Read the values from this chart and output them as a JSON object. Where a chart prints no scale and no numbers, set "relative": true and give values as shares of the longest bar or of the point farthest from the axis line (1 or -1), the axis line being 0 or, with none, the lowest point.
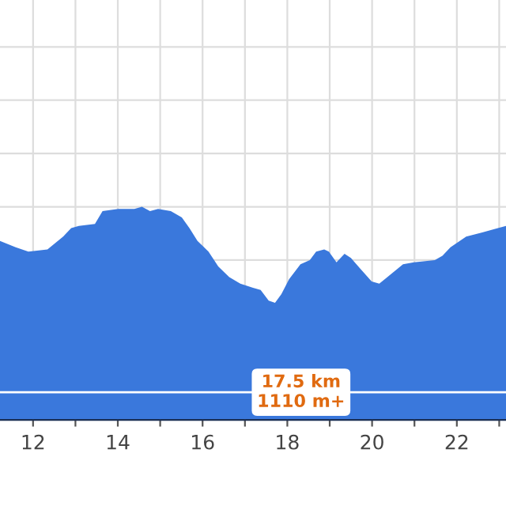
{
  "chart_data": {
    "type": "area",
    "relative": true,
    "x": [
      11.22,
      11.59,
      11.89,
      12.34,
      12.71,
      12.9,
      13.08,
      13.46,
      13.64,
      14.01,
      14.39,
      14.57,
      14.76,
      14.95,
      15.25,
      15.51,
      15.69,
      15.88,
      16.14,
      16.37,
      16.63,
      16.89,
      17.19,
      17.37,
      17.56,
      17.71,
      17.86,
      18.04,
      18.31,
      18.53,
      18.68,
      18.87,
      18.98,
      19.16,
      19.35,
      19.5,
      19.72,
      19.99,
      20.17,
      20.36,
      20.73,
      20.99,
      21.48,
      21.66,
      21.85,
      22.22,
      22.6,
      22.97,
      23.16
    ],
    "series": [
      {
        "color": "#3a78dc",
        "values": [
          0.84,
          0.81,
          0.79,
          0.8,
          0.86,
          0.9,
          0.91,
          0.92,
          0.98,
          0.99,
          0.99,
          1.0,
          0.98,
          0.99,
          0.98,
          0.95,
          0.9,
          0.84,
          0.79,
          0.72,
          0.67,
          0.64,
          0.62,
          0.61,
          0.56,
          0.55,
          0.59,
          0.66,
          0.73,
          0.75,
          0.79,
          0.8,
          0.79,
          0.74,
          0.78,
          0.76,
          0.71,
          0.65,
          0.64,
          0.67,
          0.73,
          0.74,
          0.75,
          0.77,
          0.81,
          0.86,
          0.88,
          0.9,
          0.91
        ]
      }
    ],
    "xlim": [
      11.22,
      23.16
    ],
    "xticks": [
      12,
      {
        "value": 13,
        "label": null
      },
      14,
      {
        "value": 15,
        "label": null
      },
      16,
      {
        "value": 17,
        "label": null
      },
      18,
      {
        "value": 19,
        "label": null
      },
      20,
      {
        "value": 21,
        "label": null
      },
      22,
      {
        "value": 23,
        "label": null
      }
    ],
    "ref_lines": [
      {
        "axis": "y",
        "value": 0.13,
        "label": "17.5 km\n1110 m+",
        "color": "#ffffff"
      }
    ],
    "grid": true,
    "tick_labels": "x",
    "legend": false
  }
}
